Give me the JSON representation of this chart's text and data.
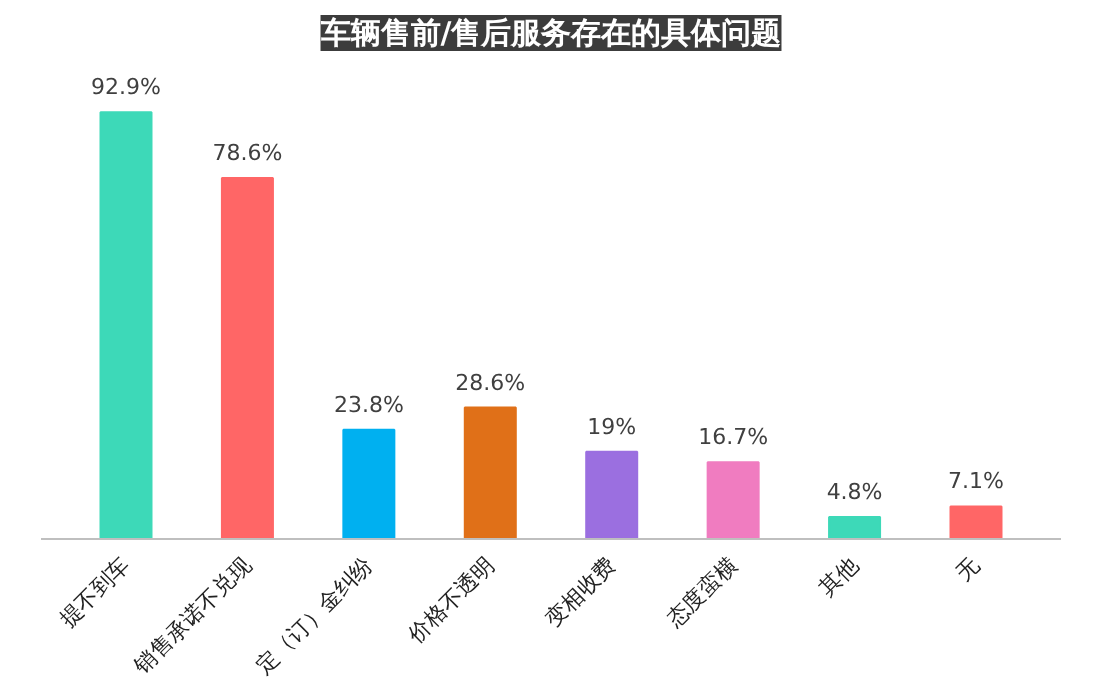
{
  "chart_data": {
    "type": "bar",
    "title": "车辆售前/售后服务存在的具体问题",
    "categories": [
      "提不到车",
      "销售承诺不兑现",
      "定（订）金纠纷",
      "价格不透明",
      "变相收费",
      "态度蛮横",
      "其他",
      "无"
    ],
    "values": [
      92.9,
      78.6,
      23.8,
      28.6,
      19,
      16.7,
      4.8,
      7.1
    ],
    "colors": [
      "#3dd9b8",
      "#ff6666",
      "#00b0f0",
      "#e07018",
      "#9b6fe0",
      "#f07cc0",
      "#3dd9b8",
      "#ff6666"
    ],
    "value_labels": [
      "92.9%",
      "78.6%",
      "23.8%",
      "28.6%",
      "19%",
      "16.7%",
      "4.8%",
      "7.1%"
    ],
    "grid": false
  }
}
